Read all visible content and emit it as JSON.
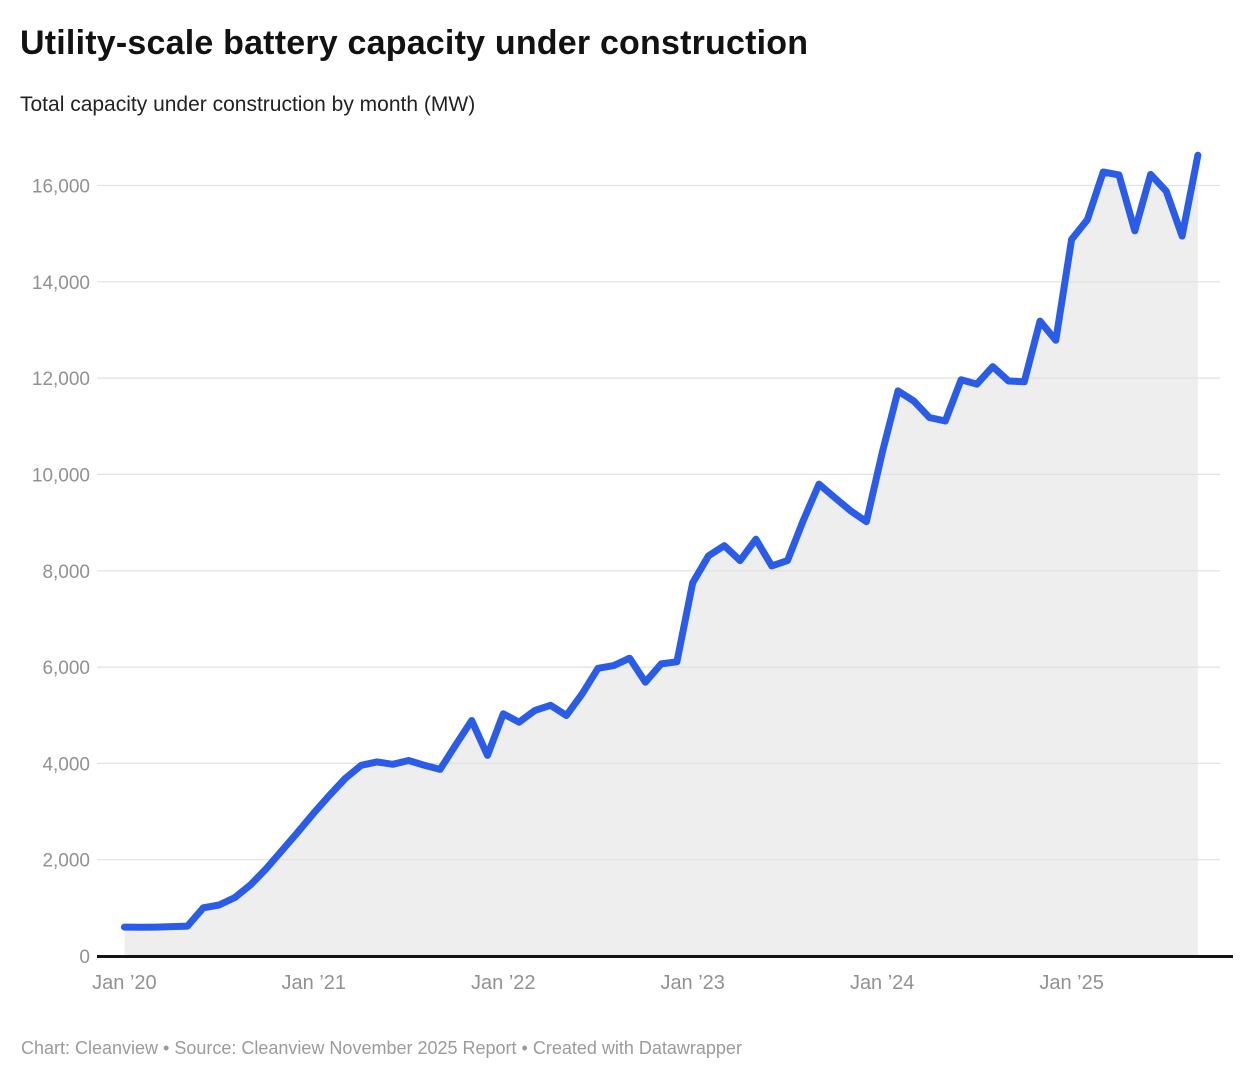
{
  "header": {
    "title": "Utility-scale battery capacity under construction",
    "subtitle": "Total capacity under construction by month (MW)"
  },
  "footer": {
    "text": "Chart: Cleanview • Source: Cleanview November 2025 Report • Created with Datawrapper"
  },
  "colors": {
    "line": "#2b5ce8",
    "area": "#eeeeee",
    "grid": "#e1e1e1",
    "axis": "#141414",
    "tick_label": "#919191",
    "title": "#121212",
    "subtitle": "#222222",
    "footer": "#9b9b9b",
    "background": "#ffffff"
  },
  "chart_data": {
    "type": "area",
    "title": "Utility-scale battery capacity under construction",
    "subtitle": "Total capacity under construction by month (MW)",
    "unit": "MW",
    "grid": true,
    "legend": false,
    "ylim": [
      0,
      16000
    ],
    "y_tick_interval": 2000,
    "months": [
      "2020-01",
      "2020-02",
      "2020-03",
      "2020-04",
      "2020-05",
      "2020-06",
      "2020-07",
      "2020-08",
      "2020-09",
      "2020-10",
      "2020-11",
      "2020-12",
      "2021-01",
      "2021-02",
      "2021-03",
      "2021-04",
      "2021-05",
      "2021-06",
      "2021-07",
      "2021-08",
      "2021-09",
      "2021-10",
      "2021-11",
      "2021-12",
      "2022-01",
      "2022-02",
      "2022-03",
      "2022-04",
      "2022-05",
      "2022-06",
      "2022-07",
      "2022-08",
      "2022-09",
      "2022-10",
      "2022-11",
      "2022-12",
      "2023-01",
      "2023-02",
      "2023-03",
      "2023-04",
      "2023-05",
      "2023-06",
      "2023-07",
      "2023-08",
      "2023-09",
      "2023-10",
      "2023-11",
      "2023-12",
      "2024-01",
      "2024-02",
      "2024-03",
      "2024-04",
      "2024-05",
      "2024-06",
      "2024-07",
      "2024-08",
      "2024-09",
      "2024-10",
      "2024-11",
      "2024-12",
      "2025-01",
      "2025-02",
      "2025-03",
      "2025-04",
      "2025-05",
      "2025-06",
      "2025-07",
      "2025-08",
      "2025-09"
    ],
    "values": [
      600,
      595,
      600,
      610,
      620,
      1000,
      1060,
      1215,
      1480,
      1820,
      2200,
      2580,
      2970,
      3340,
      3690,
      3960,
      4030,
      3980,
      4060,
      3960,
      3875,
      4390,
      4890,
      4165,
      5030,
      4855,
      5100,
      5205,
      4995,
      5445,
      5975,
      6030,
      6185,
      5685,
      6065,
      6110,
      7750,
      8310,
      8520,
      8210,
      8655,
      8100,
      8210,
      9040,
      9800,
      9520,
      9245,
      9020,
      10450,
      11735,
      11525,
      11180,
      11110,
      11965,
      11875,
      12240,
      11940,
      11925,
      13185,
      12785,
      14880,
      15290,
      16280,
      16220,
      15060,
      16230,
      15880,
      14950,
      16630
    ],
    "x_ticks": [
      {
        "index": 0,
        "label": "Jan ’20"
      },
      {
        "index": 12,
        "label": "Jan ’21"
      },
      {
        "index": 24,
        "label": "Jan ’22"
      },
      {
        "index": 36,
        "label": "Jan ’23"
      },
      {
        "index": 48,
        "label": "Jan ’24"
      },
      {
        "index": 60,
        "label": "Jan ’25"
      }
    ],
    "y_ticks": [
      {
        "value": 0,
        "label": "0"
      },
      {
        "value": 2000,
        "label": "2,000"
      },
      {
        "value": 4000,
        "label": "4,000"
      },
      {
        "value": 6000,
        "label": "6,000"
      },
      {
        "value": 8000,
        "label": "8,000"
      },
      {
        "value": 10000,
        "label": "10,000"
      },
      {
        "value": 12000,
        "label": "12,000"
      },
      {
        "value": 14000,
        "label": "14,000"
      },
      {
        "value": 16000,
        "label": "16,000"
      }
    ]
  }
}
